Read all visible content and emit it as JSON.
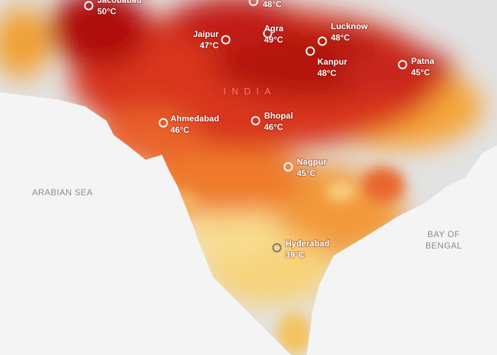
{
  "region_label": "INDIA",
  "sea_labels": {
    "arabian_sea": "ARABIAN SEA",
    "bay_of_bengal": [
      "BAY OF",
      "BENGAL"
    ]
  },
  "cities": [
    {
      "name": "Jacobabad",
      "temperature": "50°C"
    },
    {
      "temperature": "48°C"
    },
    {
      "name": "Jaipur",
      "temperature": "47°C"
    },
    {
      "name": "Agra",
      "temperature": "49°C"
    },
    {
      "name": "Lucknow",
      "temperature": "48°C"
    },
    {
      "name": "Kanpur",
      "temperature": "48°C"
    },
    {
      "name": "Patna",
      "temperature": "45°C"
    },
    {
      "name": "Ahmedabad",
      "temperature": "46°C"
    },
    {
      "name": "Bhopal",
      "temperature": "46°C"
    },
    {
      "name": "Nagpur",
      "temperature": "45°C"
    },
    {
      "name": "Hyderabad",
      "temperature": "39°C"
    }
  ]
}
